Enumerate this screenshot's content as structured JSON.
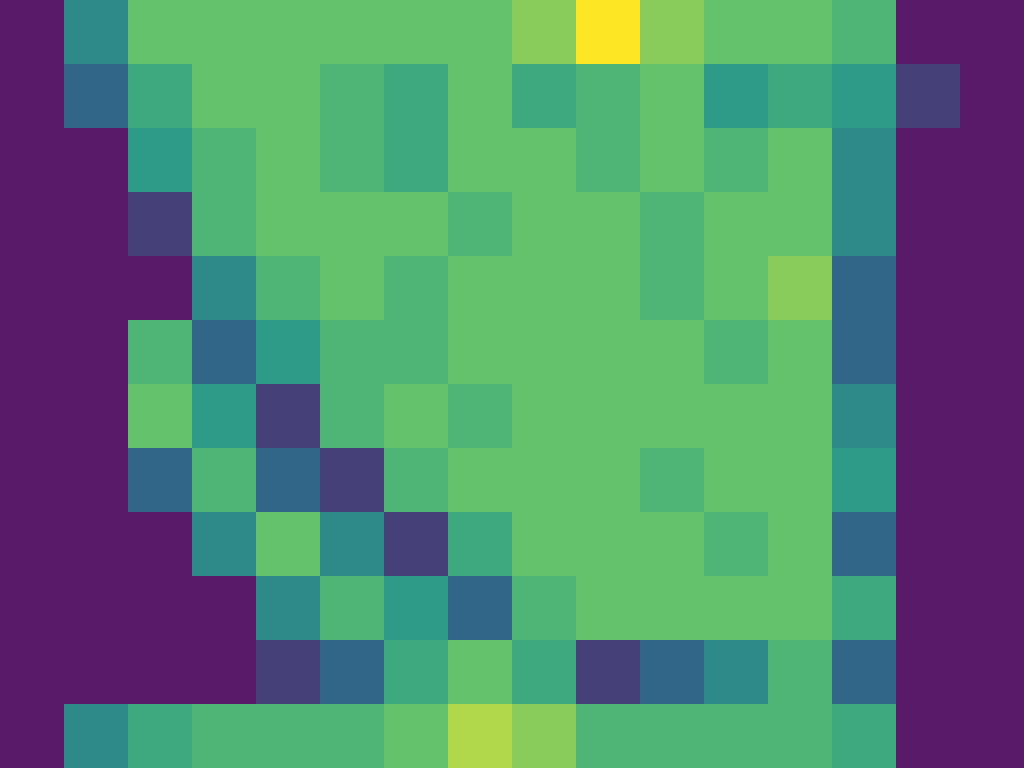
{
  "chart_data": {
    "type": "heatmap",
    "tick_labels": false,
    "xlim": [
      0,
      16
    ],
    "ylim": [
      0,
      12
    ],
    "cells": [
      [
        0,
        0.3,
        0.5,
        0.5,
        0.5,
        0.5,
        0.5,
        0.5,
        0.55,
        0.7,
        0.55,
        0.5,
        0.5,
        0.45,
        0,
        0
      ],
      [
        0,
        0.2,
        0.4,
        0.5,
        0.5,
        0.45,
        0.4,
        0.5,
        0.4,
        0.45,
        0.5,
        0.35,
        0.4,
        0.35,
        0.1,
        0
      ],
      [
        0,
        0,
        0.35,
        0.45,
        0.5,
        0.45,
        0.4,
        0.5,
        0.5,
        0.45,
        0.5,
        0.45,
        0.5,
        0.3,
        0,
        0
      ],
      [
        0,
        0,
        0.1,
        0.45,
        0.5,
        0.5,
        0.5,
        0.45,
        0.5,
        0.5,
        0.45,
        0.5,
        0.5,
        0.3,
        0,
        0
      ],
      [
        0,
        0,
        0,
        0.3,
        0.45,
        0.5,
        0.45,
        0.5,
        0.5,
        0.5,
        0.45,
        0.5,
        0.55,
        0.2,
        0,
        0
      ],
      [
        0,
        0,
        0.45,
        0.2,
        0.35,
        0.45,
        0.45,
        0.5,
        0.5,
        0.5,
        0.5,
        0.45,
        0.5,
        0.2,
        0,
        0
      ],
      [
        0,
        0,
        0.5,
        0.35,
        0.1,
        0.45,
        0.5,
        0.45,
        0.5,
        0.5,
        0.5,
        0.5,
        0.5,
        0.3,
        0,
        0
      ],
      [
        0,
        0,
        0.2,
        0.45,
        0.2,
        0.1,
        0.45,
        0.5,
        0.5,
        0.5,
        0.45,
        0.5,
        0.5,
        0.35,
        0,
        0
      ],
      [
        0,
        0,
        0,
        0.3,
        0.5,
        0.3,
        0.1,
        0.4,
        0.5,
        0.5,
        0.5,
        0.45,
        0.5,
        0.2,
        0,
        0
      ],
      [
        0,
        0,
        0,
        0,
        0.3,
        0.45,
        0.35,
        0.2,
        0.45,
        0.5,
        0.5,
        0.5,
        0.5,
        0.4,
        0,
        0
      ],
      [
        0,
        0,
        0,
        0,
        0.1,
        0.2,
        0.4,
        0.5,
        0.4,
        0.1,
        0.2,
        0.3,
        0.45,
        0.2,
        0,
        0
      ],
      [
        0,
        0.3,
        0.4,
        0.45,
        0.45,
        0.45,
        0.5,
        0.6,
        0.55,
        0.45,
        0.45,
        0.45,
        0.45,
        0.4,
        0,
        0
      ]
    ]
  }
}
